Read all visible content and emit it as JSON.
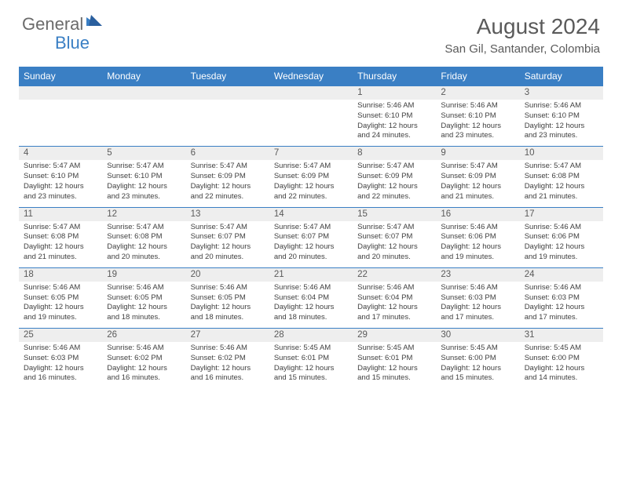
{
  "brand": {
    "part1": "General",
    "part2": "Blue"
  },
  "title": "August 2024",
  "location": "San Gil, Santander, Colombia",
  "colors": {
    "header_bg": "#3a7fc4",
    "header_text": "#ffffff",
    "daynum_bg": "#eeeeee",
    "text_primary": "#5a5a5a",
    "text_body": "#404040",
    "logo_gray": "#6b6b6b",
    "logo_blue": "#3a7fc4",
    "page_bg": "#ffffff"
  },
  "typography": {
    "month_title_pt": 28,
    "location_pt": 15,
    "dow_pt": 12,
    "daynum_pt": 11.5,
    "info_pt": 9.5
  },
  "dow": [
    "Sunday",
    "Monday",
    "Tuesday",
    "Wednesday",
    "Thursday",
    "Friday",
    "Saturday"
  ],
  "weeks": [
    {
      "nums": [
        "",
        "",
        "",
        "",
        "1",
        "2",
        "3"
      ],
      "info": [
        "",
        "",
        "",
        "",
        "Sunrise: 5:46 AM\nSunset: 6:10 PM\nDaylight: 12 hours and 24 minutes.",
        "Sunrise: 5:46 AM\nSunset: 6:10 PM\nDaylight: 12 hours and 23 minutes.",
        "Sunrise: 5:46 AM\nSunset: 6:10 PM\nDaylight: 12 hours and 23 minutes."
      ]
    },
    {
      "nums": [
        "4",
        "5",
        "6",
        "7",
        "8",
        "9",
        "10"
      ],
      "info": [
        "Sunrise: 5:47 AM\nSunset: 6:10 PM\nDaylight: 12 hours and 23 minutes.",
        "Sunrise: 5:47 AM\nSunset: 6:10 PM\nDaylight: 12 hours and 23 minutes.",
        "Sunrise: 5:47 AM\nSunset: 6:09 PM\nDaylight: 12 hours and 22 minutes.",
        "Sunrise: 5:47 AM\nSunset: 6:09 PM\nDaylight: 12 hours and 22 minutes.",
        "Sunrise: 5:47 AM\nSunset: 6:09 PM\nDaylight: 12 hours and 22 minutes.",
        "Sunrise: 5:47 AM\nSunset: 6:09 PM\nDaylight: 12 hours and 21 minutes.",
        "Sunrise: 5:47 AM\nSunset: 6:08 PM\nDaylight: 12 hours and 21 minutes."
      ]
    },
    {
      "nums": [
        "11",
        "12",
        "13",
        "14",
        "15",
        "16",
        "17"
      ],
      "info": [
        "Sunrise: 5:47 AM\nSunset: 6:08 PM\nDaylight: 12 hours and 21 minutes.",
        "Sunrise: 5:47 AM\nSunset: 6:08 PM\nDaylight: 12 hours and 20 minutes.",
        "Sunrise: 5:47 AM\nSunset: 6:07 PM\nDaylight: 12 hours and 20 minutes.",
        "Sunrise: 5:47 AM\nSunset: 6:07 PM\nDaylight: 12 hours and 20 minutes.",
        "Sunrise: 5:47 AM\nSunset: 6:07 PM\nDaylight: 12 hours and 20 minutes.",
        "Sunrise: 5:46 AM\nSunset: 6:06 PM\nDaylight: 12 hours and 19 minutes.",
        "Sunrise: 5:46 AM\nSunset: 6:06 PM\nDaylight: 12 hours and 19 minutes."
      ]
    },
    {
      "nums": [
        "18",
        "19",
        "20",
        "21",
        "22",
        "23",
        "24"
      ],
      "info": [
        "Sunrise: 5:46 AM\nSunset: 6:05 PM\nDaylight: 12 hours and 19 minutes.",
        "Sunrise: 5:46 AM\nSunset: 6:05 PM\nDaylight: 12 hours and 18 minutes.",
        "Sunrise: 5:46 AM\nSunset: 6:05 PM\nDaylight: 12 hours and 18 minutes.",
        "Sunrise: 5:46 AM\nSunset: 6:04 PM\nDaylight: 12 hours and 18 minutes.",
        "Sunrise: 5:46 AM\nSunset: 6:04 PM\nDaylight: 12 hours and 17 minutes.",
        "Sunrise: 5:46 AM\nSunset: 6:03 PM\nDaylight: 12 hours and 17 minutes.",
        "Sunrise: 5:46 AM\nSunset: 6:03 PM\nDaylight: 12 hours and 17 minutes."
      ]
    },
    {
      "nums": [
        "25",
        "26",
        "27",
        "28",
        "29",
        "30",
        "31"
      ],
      "info": [
        "Sunrise: 5:46 AM\nSunset: 6:03 PM\nDaylight: 12 hours and 16 minutes.",
        "Sunrise: 5:46 AM\nSunset: 6:02 PM\nDaylight: 12 hours and 16 minutes.",
        "Sunrise: 5:46 AM\nSunset: 6:02 PM\nDaylight: 12 hours and 16 minutes.",
        "Sunrise: 5:45 AM\nSunset: 6:01 PM\nDaylight: 12 hours and 15 minutes.",
        "Sunrise: 5:45 AM\nSunset: 6:01 PM\nDaylight: 12 hours and 15 minutes.",
        "Sunrise: 5:45 AM\nSunset: 6:00 PM\nDaylight: 12 hours and 15 minutes.",
        "Sunrise: 5:45 AM\nSunset: 6:00 PM\nDaylight: 12 hours and 14 minutes."
      ]
    }
  ]
}
